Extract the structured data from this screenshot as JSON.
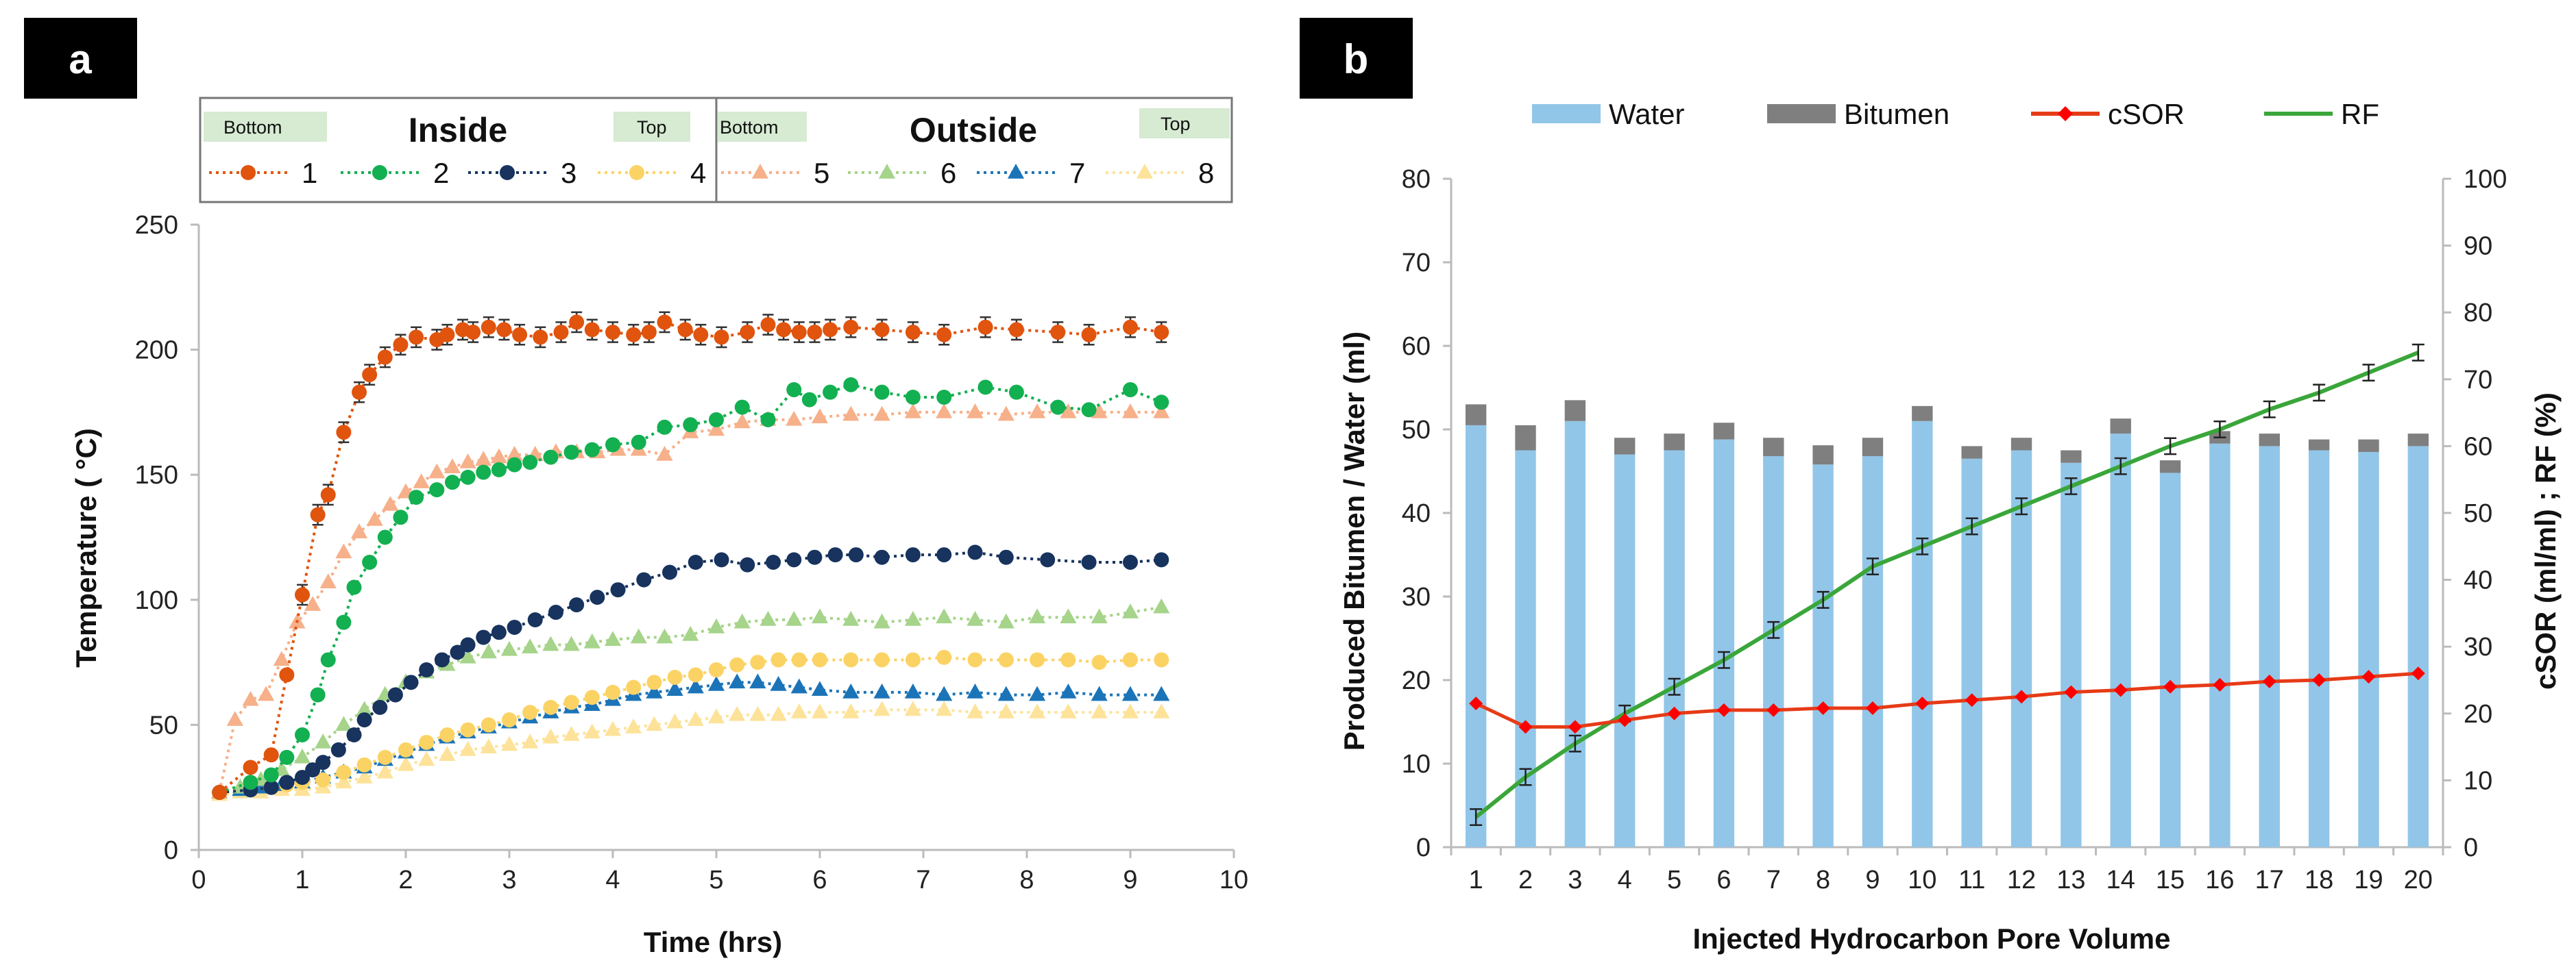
{
  "colors": {
    "s1": "#e0540e",
    "s2": "#12b050",
    "s3": "#17335e",
    "s4": "#fbd365",
    "s5": "#f6b08a",
    "s6": "#a5d48a",
    "s7": "#1b74b8",
    "s8": "#fde29a",
    "water": "#92c6e8",
    "bitumen": "#7f7f7f",
    "csor": "#e63b17",
    "csor_marker": "#ff0000",
    "rf": "#3aa63a",
    "legend_tag": "#d6ebd2"
  },
  "chart_data": [
    {
      "panel": "a",
      "type": "line",
      "xlabel": "Time (hrs)",
      "ylabel": "Temperature ( °C)",
      "xlim": [
        0,
        10
      ],
      "ylim": [
        0,
        250
      ],
      "xticks": [
        0,
        1,
        2,
        3,
        4,
        5,
        6,
        7,
        8,
        9,
        10
      ],
      "yticks": [
        0,
        50,
        100,
        150,
        200,
        250
      ],
      "legend": {
        "inside_title": "Inside",
        "outside_title": "Outside",
        "bottom_tag": "Bottom",
        "top_tag": "Top"
      },
      "series": [
        {
          "name": "1",
          "marker": "circle",
          "error_bars": true,
          "x": [
            0.2,
            0.5,
            0.7,
            0.85,
            1.0,
            1.15,
            1.25,
            1.4,
            1.55,
            1.65,
            1.8,
            1.95,
            2.1,
            2.3,
            2.4,
            2.55,
            2.65,
            2.8,
            2.95,
            3.1,
            3.3,
            3.5,
            3.65,
            3.8,
            4.0,
            4.2,
            4.35,
            4.5,
            4.7,
            4.85,
            5.05,
            5.3,
            5.5,
            5.65,
            5.8,
            5.95,
            6.1,
            6.3,
            6.6,
            6.9,
            7.2,
            7.6,
            7.9,
            8.3,
            8.6,
            9.0,
            9.3
          ],
          "y": [
            23,
            33,
            38,
            70,
            102,
            134,
            142,
            167,
            183,
            190,
            197,
            202,
            205,
            204,
            206,
            208,
            207,
            209,
            208,
            206,
            205,
            207,
            211,
            208,
            207,
            206,
            207,
            211,
            208,
            206,
            205,
            207,
            210,
            208,
            207,
            207,
            208,
            209,
            208,
            207,
            206,
            209,
            208,
            207,
            206,
            209,
            207
          ]
        },
        {
          "name": "2",
          "marker": "circle",
          "error_bars": false,
          "x": [
            0.2,
            0.5,
            0.7,
            0.85,
            1.0,
            1.15,
            1.25,
            1.4,
            1.5,
            1.65,
            1.8,
            1.95,
            2.1,
            2.3,
            2.45,
            2.6,
            2.75,
            2.9,
            3.05,
            3.2,
            3.4,
            3.6,
            3.8,
            4.0,
            4.25,
            4.5,
            4.75,
            5.0,
            5.25,
            5.5,
            5.75,
            5.9,
            6.1,
            6.3,
            6.6,
            6.9,
            7.2,
            7.6,
            7.9,
            8.3,
            8.6,
            9.0,
            9.3
          ],
          "y": [
            23,
            27,
            30,
            37,
            46,
            62,
            76,
            91,
            105,
            115,
            125,
            133,
            141,
            144,
            147,
            149,
            151,
            152,
            154,
            155,
            157,
            159,
            160,
            162,
            163,
            169,
            170,
            172,
            177,
            172,
            184,
            180,
            183,
            186,
            183,
            181,
            181,
            185,
            183,
            177,
            176,
            184,
            179
          ]
        },
        {
          "name": "3",
          "marker": "circle",
          "error_bars": false,
          "x": [
            0.2,
            0.5,
            0.7,
            0.85,
            1.0,
            1.1,
            1.2,
            1.35,
            1.5,
            1.6,
            1.75,
            1.9,
            2.05,
            2.2,
            2.35,
            2.5,
            2.6,
            2.75,
            2.9,
            3.05,
            3.25,
            3.45,
            3.65,
            3.85,
            4.05,
            4.3,
            4.55,
            4.8,
            5.05,
            5.3,
            5.55,
            5.75,
            5.95,
            6.15,
            6.35,
            6.6,
            6.9,
            7.2,
            7.5,
            7.8,
            8.2,
            8.6,
            9.0,
            9.3
          ],
          "y": [
            23,
            24,
            25,
            27,
            29,
            32,
            35,
            40,
            46,
            52,
            57,
            62,
            67,
            72,
            76,
            79,
            82,
            85,
            87,
            89,
            92,
            95,
            98,
            101,
            104,
            108,
            111,
            115,
            116,
            114,
            115,
            116,
            117,
            118,
            118,
            117,
            118,
            118,
            119,
            117,
            116,
            115,
            115,
            116
          ]
        },
        {
          "name": "4",
          "marker": "circle",
          "error_bars": false,
          "x": [
            0.2,
            0.5,
            0.7,
            0.85,
            1.0,
            1.2,
            1.4,
            1.6,
            1.8,
            2.0,
            2.2,
            2.4,
            2.6,
            2.8,
            3.0,
            3.2,
            3.4,
            3.6,
            3.8,
            4.0,
            4.2,
            4.4,
            4.6,
            4.8,
            5.0,
            5.2,
            5.4,
            5.6,
            5.8,
            6.0,
            6.3,
            6.6,
            6.9,
            7.2,
            7.5,
            7.8,
            8.1,
            8.4,
            8.7,
            9.0,
            9.3
          ],
          "y": [
            23,
            24,
            25,
            26,
            27,
            28,
            31,
            34,
            37,
            40,
            43,
            46,
            48,
            50,
            52,
            55,
            57,
            59,
            61,
            63,
            65,
            67,
            69,
            70,
            72,
            74,
            75,
            76,
            76,
            76,
            76,
            76,
            76,
            77,
            76,
            76,
            76,
            76,
            75,
            76,
            76
          ]
        },
        {
          "name": "5",
          "marker": "triangle",
          "error_bars": false,
          "x": [
            0.2,
            0.35,
            0.5,
            0.65,
            0.8,
            0.95,
            1.1,
            1.25,
            1.4,
            1.55,
            1.7,
            1.85,
            2.0,
            2.15,
            2.3,
            2.45,
            2.6,
            2.75,
            2.9,
            3.05,
            3.25,
            3.45,
            3.65,
            3.85,
            4.05,
            4.25,
            4.5,
            4.75,
            5.0,
            5.25,
            5.5,
            5.75,
            6.0,
            6.3,
            6.6,
            6.9,
            7.2,
            7.5,
            7.8,
            8.1,
            8.4,
            8.7,
            9.0,
            9.3
          ],
          "y": [
            23,
            52,
            60,
            62,
            76,
            91,
            98,
            107,
            119,
            127,
            132,
            138,
            143,
            147,
            151,
            153,
            155,
            156,
            157,
            158,
            158,
            159,
            159,
            159,
            160,
            160,
            158,
            167,
            168,
            171,
            172,
            172,
            173,
            174,
            174,
            175,
            175,
            175,
            174,
            175,
            175,
            175,
            175,
            175
          ]
        },
        {
          "name": "6",
          "marker": "triangle",
          "error_bars": false,
          "x": [
            0.2,
            0.4,
            0.6,
            0.8,
            1.0,
            1.2,
            1.4,
            1.6,
            1.8,
            2.0,
            2.2,
            2.4,
            2.6,
            2.8,
            3.0,
            3.2,
            3.4,
            3.6,
            3.8,
            4.0,
            4.25,
            4.5,
            4.75,
            5.0,
            5.25,
            5.5,
            5.75,
            6.0,
            6.3,
            6.6,
            6.9,
            7.2,
            7.5,
            7.8,
            8.1,
            8.4,
            8.7,
            9.0,
            9.3
          ],
          "y": [
            23,
            25,
            28,
            32,
            37,
            43,
            50,
            56,
            62,
            67,
            71,
            74,
            77,
            79,
            80,
            81,
            82,
            82,
            83,
            84,
            85,
            85,
            86,
            89,
            91,
            92,
            92,
            93,
            92,
            91,
            92,
            93,
            92,
            91,
            93,
            93,
            93,
            95,
            97
          ]
        },
        {
          "name": "7",
          "marker": "triangle",
          "error_bars": false,
          "x": [
            0.2,
            0.4,
            0.6,
            0.8,
            1.0,
            1.2,
            1.4,
            1.6,
            1.8,
            2.0,
            2.2,
            2.4,
            2.6,
            2.8,
            3.0,
            3.2,
            3.4,
            3.6,
            3.8,
            4.0,
            4.2,
            4.4,
            4.6,
            4.8,
            5.0,
            5.2,
            5.4,
            5.6,
            5.8,
            6.0,
            6.3,
            6.6,
            6.9,
            7.2,
            7.5,
            7.8,
            8.1,
            8.4,
            8.7,
            9.0,
            9.3
          ],
          "y": [
            23,
            24,
            25,
            26,
            27,
            29,
            31,
            33,
            36,
            39,
            42,
            45,
            47,
            49,
            51,
            53,
            55,
            57,
            58,
            60,
            62,
            63,
            64,
            65,
            66,
            67,
            67,
            66,
            65,
            64,
            63,
            63,
            63,
            62,
            63,
            62,
            62,
            63,
            62,
            62,
            62
          ]
        },
        {
          "name": "8",
          "marker": "triangle",
          "error_bars": false,
          "x": [
            0.2,
            0.4,
            0.6,
            0.8,
            1.0,
            1.2,
            1.4,
            1.6,
            1.8,
            2.0,
            2.2,
            2.4,
            2.6,
            2.8,
            3.0,
            3.2,
            3.4,
            3.6,
            3.8,
            4.0,
            4.2,
            4.4,
            4.6,
            4.8,
            5.0,
            5.2,
            5.4,
            5.6,
            5.8,
            6.0,
            6.3,
            6.6,
            6.9,
            7.2,
            7.5,
            7.8,
            8.1,
            8.4,
            8.7,
            9.0,
            9.3
          ],
          "y": [
            22,
            23,
            23,
            24,
            24,
            25,
            27,
            29,
            31,
            34,
            36,
            38,
            40,
            41,
            42,
            43,
            45,
            46,
            47,
            48,
            49,
            50,
            51,
            52,
            53,
            54,
            54,
            54,
            55,
            55,
            55,
            56,
            56,
            56,
            55,
            55,
            55,
            55,
            55,
            55,
            55
          ]
        }
      ]
    },
    {
      "panel": "b",
      "type": "bar",
      "xlabel": "Injected  Hydrocarbon  Pore Volume",
      "ylabel": "Produced Bitumen / Water  (ml)",
      "y2label": "cSOR  (ml/ml) ;  RF  (%)",
      "ylim": [
        0,
        80
      ],
      "y2lim": [
        0,
        100
      ],
      "yticks": [
        0,
        10,
        20,
        30,
        40,
        50,
        60,
        70,
        80
      ],
      "y2ticks": [
        0,
        10,
        20,
        30,
        40,
        50,
        60,
        70,
        80,
        90,
        100
      ],
      "categories": [
        "1",
        "2",
        "3",
        "4",
        "5",
        "6",
        "7",
        "8",
        "9",
        "10",
        "11",
        "12",
        "13",
        "14",
        "15",
        "16",
        "17",
        "18",
        "19",
        "20"
      ],
      "series": [
        {
          "name": "Water",
          "kind": "bar",
          "values": [
            50.5,
            47.5,
            51.0,
            47.0,
            47.5,
            48.8,
            46.8,
            45.8,
            46.8,
            51.0,
            46.5,
            47.5,
            46.0,
            49.5,
            44.8,
            48.3,
            48.0,
            47.5,
            47.3,
            48.0
          ]
        },
        {
          "name": "Bitumen",
          "kind": "bar-stacked",
          "values": [
            2.5,
            3.0,
            2.5,
            2.0,
            2.0,
            2.0,
            2.2,
            2.3,
            2.2,
            1.8,
            1.5,
            1.5,
            1.5,
            1.8,
            1.5,
            1.5,
            1.5,
            1.3,
            1.5,
            1.5
          ]
        },
        {
          "name": "cSOR",
          "kind": "line",
          "axis": "right",
          "values": [
            21.5,
            18.0,
            18.0,
            19.0,
            20.0,
            20.5,
            20.5,
            20.8,
            20.8,
            21.5,
            22.0,
            22.5,
            23.2,
            23.5,
            24.0,
            24.3,
            24.8,
            25.0,
            25.5,
            26.0
          ]
        },
        {
          "name": "RF",
          "kind": "line",
          "axis": "right",
          "error_bars": true,
          "values": [
            4.5,
            10.5,
            15.5,
            20.0,
            24.0,
            28.0,
            32.5,
            37.0,
            42.0,
            45.0,
            48.0,
            51.0,
            54.0,
            57.0,
            60.0,
            62.5,
            65.5,
            68.0,
            71.0,
            74.0
          ]
        }
      ]
    }
  ],
  "labels": {
    "panel_a": "a",
    "panel_b": "b"
  }
}
